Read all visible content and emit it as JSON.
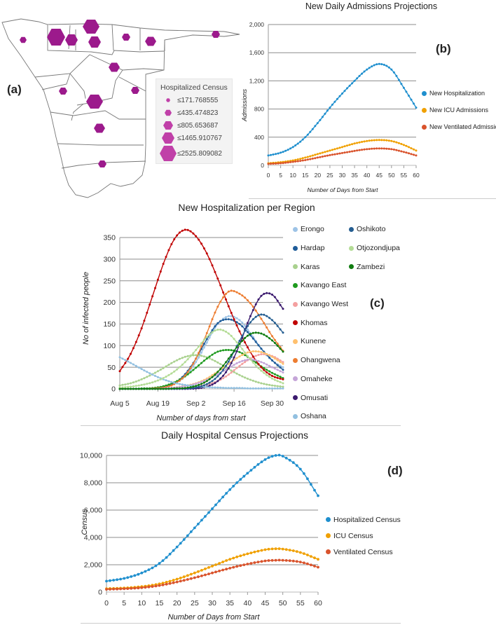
{
  "map": {
    "panel_label": "(a)",
    "legend_title": "Hospitalized Census",
    "legend_items": [
      "≤171.768555",
      "≤435.474823",
      "≤805.653687",
      "≤1465.910767",
      "≤2525.809082"
    ],
    "marker_color": "#9c1a8c",
    "legend_color": "#c040a8"
  },
  "chart_data": [
    {
      "id": "b",
      "type": "line",
      "panel_label": "(b)",
      "title": "New Daily Admissions Projections",
      "xlabel": "Number of Days from Start",
      "ylabel": "Admissions",
      "xlim": [
        0,
        60
      ],
      "ylim": [
        0,
        2000
      ],
      "xticks": [
        0,
        5,
        10,
        15,
        20,
        25,
        30,
        35,
        40,
        45,
        50,
        55,
        60
      ],
      "yticks": [
        0,
        400,
        800,
        1200,
        1600,
        2000
      ],
      "ytick_labels": [
        "0",
        "400",
        "800",
        "1,200",
        "1,600",
        "2,000"
      ],
      "grid": true,
      "legend_position": "right",
      "x": [
        0,
        5,
        10,
        15,
        20,
        25,
        30,
        35,
        40,
        45,
        50,
        55,
        60
      ],
      "series": [
        {
          "name": "New Hospitalization",
          "color": "#1f8fce",
          "values": [
            140,
            180,
            260,
            400,
            600,
            820,
            1020,
            1200,
            1360,
            1440,
            1360,
            1100,
            820
          ]
        },
        {
          "name": "New ICU Admissions",
          "color": "#f0a000",
          "values": [
            30,
            45,
            70,
            110,
            160,
            210,
            260,
            310,
            345,
            360,
            345,
            290,
            210
          ]
        },
        {
          "name": "New Ventilated Admissions",
          "color": "#d9532c",
          "values": [
            20,
            30,
            50,
            75,
            110,
            145,
            175,
            205,
            230,
            240,
            230,
            190,
            140
          ]
        }
      ]
    },
    {
      "id": "c",
      "type": "line",
      "panel_label": "(c)",
      "title": "New Hospitalization per Region",
      "xlabel": "Number of days from start",
      "ylabel": "No of infected people",
      "xlim": [
        0,
        60
      ],
      "ylim": [
        0,
        350
      ],
      "xticks": [
        0,
        14,
        28,
        42,
        56
      ],
      "xtick_labels": [
        "Aug 5",
        "Aug 19",
        "Sep 2",
        "Sep 16",
        "Sep 30"
      ],
      "yticks": [
        0,
        50,
        100,
        150,
        200,
        250,
        300,
        350
      ],
      "ytick_labels": [
        "0",
        "50",
        "100",
        "150",
        "200",
        "250",
        "300",
        "350"
      ],
      "grid": true,
      "legend_position": "right",
      "x": [
        0,
        4,
        8,
        12,
        16,
        20,
        24,
        28,
        32,
        36,
        40,
        44,
        48,
        52,
        56,
        60
      ],
      "series": [
        {
          "name": "Erongo",
          "color": "#9dc3e6",
          "values": [
            0,
            0,
            0,
            1,
            3,
            11,
            29,
            62,
            107,
            150,
            168,
            159,
            129,
            93,
            65,
            50
          ]
        },
        {
          "name": "Hardap",
          "color": "#1f5c99",
          "values": [
            0,
            0,
            0,
            1,
            4,
            13,
            34,
            70,
            115,
            152,
            161,
            150,
            124,
            93,
            66,
            44
          ]
        },
        {
          "name": "Karas",
          "color": "#a9d18e",
          "values": [
            8,
            13,
            22,
            34,
            48,
            63,
            74,
            78,
            73,
            61,
            46,
            32,
            21,
            13,
            8,
            5
          ]
        },
        {
          "name": "Kavango East",
          "color": "#1e9a1e",
          "values": [
            0,
            0,
            1,
            2,
            6,
            15,
            29,
            49,
            70,
            86,
            90,
            85,
            70,
            52,
            37,
            25
          ]
        },
        {
          "name": "Kavango West",
          "color": "#f4a0a0",
          "values": [
            0,
            0,
            0,
            0,
            0,
            1,
            2,
            5,
            10,
            18,
            33,
            53,
            70,
            80,
            76,
            62
          ]
        },
        {
          "name": "Khomas",
          "color": "#c00000",
          "values": [
            41,
            81,
            140,
            214,
            289,
            346,
            368,
            353,
            313,
            255,
            191,
            133,
            85,
            50,
            30,
            22
          ]
        },
        {
          "name": "Kunene",
          "color": "#ffc06e",
          "values": [
            0,
            0,
            0,
            0,
            1,
            3,
            7,
            13,
            24,
            40,
            58,
            75,
            86,
            85,
            74,
            58
          ]
        },
        {
          "name": "Ohangwena",
          "color": "#ed7d31",
          "values": [
            0,
            0,
            0,
            1,
            3,
            11,
            31,
            70,
            129,
            190,
            225,
            220,
            198,
            162,
            122,
            88
          ]
        },
        {
          "name": "Omaheke",
          "color": "#c5a5d8",
          "values": [
            0,
            0,
            0,
            0,
            1,
            3,
            6,
            12,
            21,
            34,
            48,
            62,
            68,
            62,
            50,
            38
          ]
        },
        {
          "name": "Omusati",
          "color": "#3b1a6e",
          "values": [
            0,
            0,
            0,
            0,
            0,
            0,
            0,
            1,
            5,
            18,
            48,
            102,
            168,
            215,
            218,
            185
          ]
        },
        {
          "name": "Oshana",
          "color": "#92c0e0",
          "values": [
            73,
            60,
            46,
            33,
            22,
            14,
            9,
            6,
            4,
            3,
            2,
            2,
            1,
            1,
            1,
            1
          ]
        },
        {
          "name": "Oshikoto",
          "color": "#255e91",
          "values": [
            0,
            0,
            0,
            0,
            0,
            0,
            1,
            3,
            11,
            29,
            63,
            111,
            154,
            172,
            159,
            130
          ]
        },
        {
          "name": "Otjozondjupa",
          "color": "#b4dc96",
          "values": [
            3,
            5,
            9,
            15,
            25,
            40,
            62,
            90,
            120,
            137,
            128,
            100,
            68,
            42,
            24,
            13
          ]
        },
        {
          "name": "Zambezi",
          "color": "#107c10",
          "values": [
            0,
            0,
            0,
            0,
            0,
            1,
            2,
            7,
            18,
            39,
            70,
            104,
            127,
            128,
            112,
            86
          ]
        }
      ],
      "legend_columns": [
        [
          "Erongo",
          "Hardap",
          "Karas",
          "Kavango East",
          "Kavango West",
          "Khomas",
          "Kunene",
          "Ohangwena",
          "Omaheke",
          "Omusati",
          "Oshana"
        ],
        [
          "Oshikoto",
          "Otjozondjupa",
          "Zambezi"
        ]
      ]
    },
    {
      "id": "d",
      "type": "line",
      "panel_label": "(d)",
      "title": "Daily Hospital Census Projections",
      "xlabel": "Number of Days from Start",
      "ylabel": "Census",
      "xlim": [
        0,
        60
      ],
      "ylim": [
        0,
        10000
      ],
      "xticks": [
        0,
        5,
        10,
        15,
        20,
        25,
        30,
        35,
        40,
        45,
        50,
        55,
        60
      ],
      "yticks": [
        0,
        2000,
        4000,
        6000,
        8000,
        10000
      ],
      "ytick_labels": [
        "0",
        "2,000",
        "4,000",
        "6,000",
        "8,000",
        "10,000"
      ],
      "grid": true,
      "legend_position": "right",
      "x": [
        0,
        5,
        10,
        15,
        20,
        25,
        30,
        35,
        40,
        45,
        48,
        50,
        55,
        60
      ],
      "series": [
        {
          "name": "Hospitalized Census",
          "color": "#1f8fce",
          "values": [
            800,
            1000,
            1400,
            2100,
            3300,
            4700,
            6100,
            7500,
            8700,
            9700,
            10000,
            9950,
            9000,
            7050
          ]
        },
        {
          "name": "ICU Census",
          "color": "#f0a000",
          "values": [
            250,
            300,
            400,
            600,
            950,
            1400,
            1900,
            2400,
            2800,
            3100,
            3170,
            3150,
            2900,
            2400
          ]
        },
        {
          "name": "Ventilated Census",
          "color": "#d9532c",
          "values": [
            200,
            240,
            320,
            480,
            740,
            1050,
            1400,
            1750,
            2050,
            2280,
            2330,
            2330,
            2200,
            1820
          ]
        }
      ]
    }
  ]
}
